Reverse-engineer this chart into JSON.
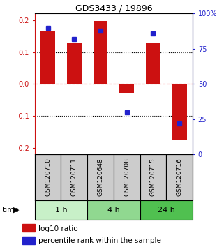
{
  "title": "GDS3433 / 19896",
  "samples": [
    "GSM120710",
    "GSM120711",
    "GSM120648",
    "GSM120708",
    "GSM120715",
    "GSM120716"
  ],
  "log10_ratio": [
    0.165,
    0.13,
    0.197,
    -0.03,
    0.13,
    -0.175
  ],
  "percentile_rank": [
    90,
    82,
    88,
    30,
    86,
    22
  ],
  "groups": [
    {
      "label": "1 h",
      "indices": [
        0,
        1
      ],
      "color": "#c8f0c8"
    },
    {
      "label": "4 h",
      "indices": [
        2,
        3
      ],
      "color": "#90d890"
    },
    {
      "label": "24 h",
      "indices": [
        4,
        5
      ],
      "color": "#50c050"
    }
  ],
  "bar_color": "#cc1111",
  "percentile_color": "#2222cc",
  "ylim": [
    -0.22,
    0.22
  ],
  "yticks_left": [
    -0.2,
    -0.1,
    0.0,
    0.1,
    0.2
  ],
  "yticks_right": [
    0,
    25,
    50,
    75,
    100
  ],
  "ytick_right_labels": [
    "0",
    "25",
    "50",
    "75",
    "100%"
  ],
  "hlines_dotted": [
    -0.1,
    0.1
  ],
  "hline_dashed": 0.0,
  "bar_width": 0.55,
  "percentile_marker_size": 5,
  "label_bg_color": "#cccccc",
  "time_arrow_color": "#333333",
  "legend_items": [
    {
      "color": "#cc1111",
      "label": "log10 ratio"
    },
    {
      "color": "#2222cc",
      "label": "percentile rank within the sample"
    }
  ]
}
